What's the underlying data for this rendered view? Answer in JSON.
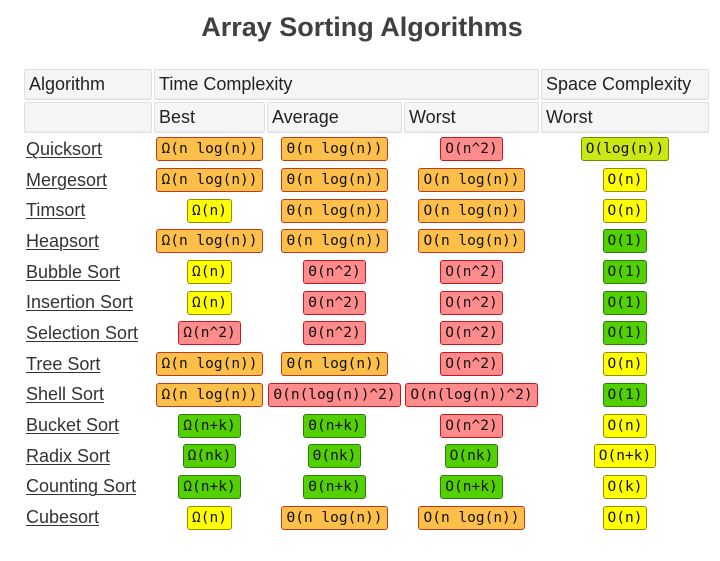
{
  "title": "Array Sorting Algorithms",
  "colors": {
    "orange": "#fcbf49",
    "red": "#ff8c8c",
    "yellow": "#ffff00",
    "lime": "#cbe812",
    "green": "#53d000"
  },
  "header": {
    "algorithm": "Algorithm",
    "time_complexity": "Time Complexity",
    "space_complexity": "Space Complexity",
    "best": "Best",
    "average": "Average",
    "worst": "Worst",
    "space_worst": "Worst"
  },
  "rows": [
    {
      "name": "Quicksort",
      "best": {
        "v": "Ω(n log(n))",
        "c": "orange"
      },
      "average": {
        "v": "Θ(n log(n))",
        "c": "orange"
      },
      "worst": {
        "v": "O(n^2)",
        "c": "red"
      },
      "space": {
        "v": "O(log(n))",
        "c": "lime"
      }
    },
    {
      "name": "Mergesort",
      "best": {
        "v": "Ω(n log(n))",
        "c": "orange"
      },
      "average": {
        "v": "Θ(n log(n))",
        "c": "orange"
      },
      "worst": {
        "v": "O(n log(n))",
        "c": "orange"
      },
      "space": {
        "v": "O(n)",
        "c": "yellow"
      }
    },
    {
      "name": "Timsort",
      "best": {
        "v": "Ω(n)",
        "c": "yellow"
      },
      "average": {
        "v": "Θ(n log(n))",
        "c": "orange"
      },
      "worst": {
        "v": "O(n log(n))",
        "c": "orange"
      },
      "space": {
        "v": "O(n)",
        "c": "yellow"
      }
    },
    {
      "name": "Heapsort",
      "best": {
        "v": "Ω(n log(n))",
        "c": "orange"
      },
      "average": {
        "v": "Θ(n log(n))",
        "c": "orange"
      },
      "worst": {
        "v": "O(n log(n))",
        "c": "orange"
      },
      "space": {
        "v": "O(1)",
        "c": "green"
      }
    },
    {
      "name": "Bubble Sort",
      "best": {
        "v": "Ω(n)",
        "c": "yellow"
      },
      "average": {
        "v": "Θ(n^2)",
        "c": "red"
      },
      "worst": {
        "v": "O(n^2)",
        "c": "red"
      },
      "space": {
        "v": "O(1)",
        "c": "green"
      }
    },
    {
      "name": "Insertion Sort",
      "best": {
        "v": "Ω(n)",
        "c": "yellow"
      },
      "average": {
        "v": "Θ(n^2)",
        "c": "red"
      },
      "worst": {
        "v": "O(n^2)",
        "c": "red"
      },
      "space": {
        "v": "O(1)",
        "c": "green"
      }
    },
    {
      "name": "Selection Sort",
      "best": {
        "v": "Ω(n^2)",
        "c": "red"
      },
      "average": {
        "v": "Θ(n^2)",
        "c": "red"
      },
      "worst": {
        "v": "O(n^2)",
        "c": "red"
      },
      "space": {
        "v": "O(1)",
        "c": "green"
      }
    },
    {
      "name": "Tree Sort",
      "best": {
        "v": "Ω(n log(n))",
        "c": "orange"
      },
      "average": {
        "v": "Θ(n log(n))",
        "c": "orange"
      },
      "worst": {
        "v": "O(n^2)",
        "c": "red"
      },
      "space": {
        "v": "O(n)",
        "c": "yellow"
      }
    },
    {
      "name": "Shell Sort",
      "best": {
        "v": "Ω(n log(n))",
        "c": "orange"
      },
      "average": {
        "v": "Θ(n(log(n))^2)",
        "c": "red"
      },
      "worst": {
        "v": "O(n(log(n))^2)",
        "c": "red"
      },
      "space": {
        "v": "O(1)",
        "c": "green"
      }
    },
    {
      "name": "Bucket Sort",
      "best": {
        "v": "Ω(n+k)",
        "c": "green"
      },
      "average": {
        "v": "Θ(n+k)",
        "c": "green"
      },
      "worst": {
        "v": "O(n^2)",
        "c": "red"
      },
      "space": {
        "v": "O(n)",
        "c": "yellow"
      }
    },
    {
      "name": "Radix Sort",
      "best": {
        "v": "Ω(nk)",
        "c": "green"
      },
      "average": {
        "v": "Θ(nk)",
        "c": "green"
      },
      "worst": {
        "v": "O(nk)",
        "c": "green"
      },
      "space": {
        "v": "O(n+k)",
        "c": "yellow"
      }
    },
    {
      "name": "Counting Sort",
      "best": {
        "v": "Ω(n+k)",
        "c": "green"
      },
      "average": {
        "v": "Θ(n+k)",
        "c": "green"
      },
      "worst": {
        "v": "O(n+k)",
        "c": "green"
      },
      "space": {
        "v": "O(k)",
        "c": "yellow"
      }
    },
    {
      "name": "Cubesort",
      "best": {
        "v": "Ω(n)",
        "c": "yellow"
      },
      "average": {
        "v": "Θ(n log(n))",
        "c": "orange"
      },
      "worst": {
        "v": "O(n log(n))",
        "c": "orange"
      },
      "space": {
        "v": "O(n)",
        "c": "yellow"
      }
    }
  ]
}
